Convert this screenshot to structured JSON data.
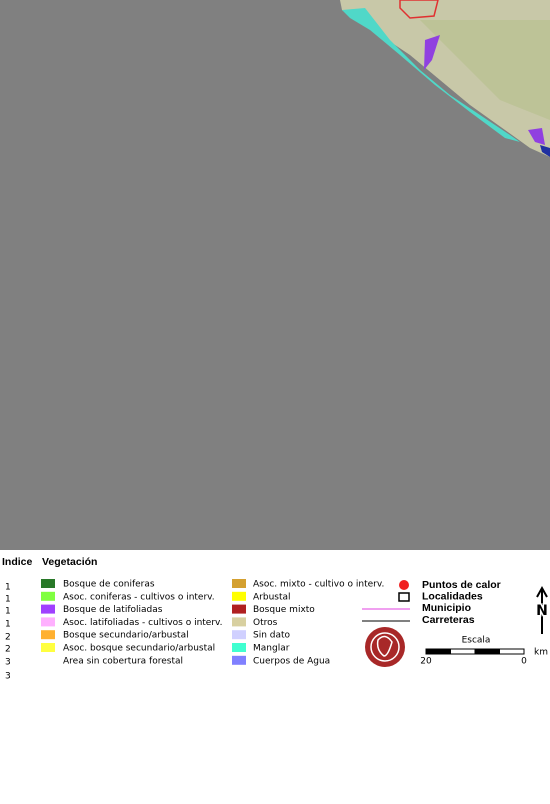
{
  "legend": {
    "headers": [
      "Indice",
      "Vegetación"
    ],
    "indices": [
      1,
      1,
      1,
      1,
      2,
      2,
      3,
      3
    ],
    "vegetation_col1": [
      {
        "label": "Bosque de coniferas",
        "color": "#287828"
      },
      {
        "label": "Asoc. coniferas - cultivos o interv.",
        "color": "#80ff40"
      },
      {
        "label": "Bosque de latifoliadas",
        "color": "#a040ff"
      },
      {
        "label": "Asoc. latifoliadas - cultivos o interv.",
        "color": "#ffb0ff"
      },
      {
        "label": "Bosque secundario/arbustal",
        "color": "#ffb030"
      },
      {
        "label": "Asoc. bosque secundario/arbustal",
        "color": "#ffff40"
      },
      {
        "label": "Area sin cobertura forestal"
      }
    ],
    "vegetation_col2": [
      {
        "label": "Asoc. mixto - cultivo o interv.",
        "color": "#d4a030"
      },
      {
        "label": "Arbustal",
        "color": "#ffff00"
      },
      {
        "label": "Bosque mixto",
        "color": "#b02020"
      },
      {
        "label": "Otros",
        "color": "#d8d0a0"
      },
      {
        "label": "Sin dato",
        "color": "#d0d0ff"
      },
      {
        "label": "Manglar",
        "color": "#40ffd0"
      },
      {
        "label": "Cuerpos de Agua",
        "color": "#8080ff"
      }
    ],
    "layers": [
      "Puntos de calor",
      "Localidades",
      "Municipio",
      "Carreteras"
    ],
    "scale": {
      "title": "Escala",
      "labels": [
        "20",
        "0"
      ],
      "unit": "km"
    },
    "north": "N"
  }
}
